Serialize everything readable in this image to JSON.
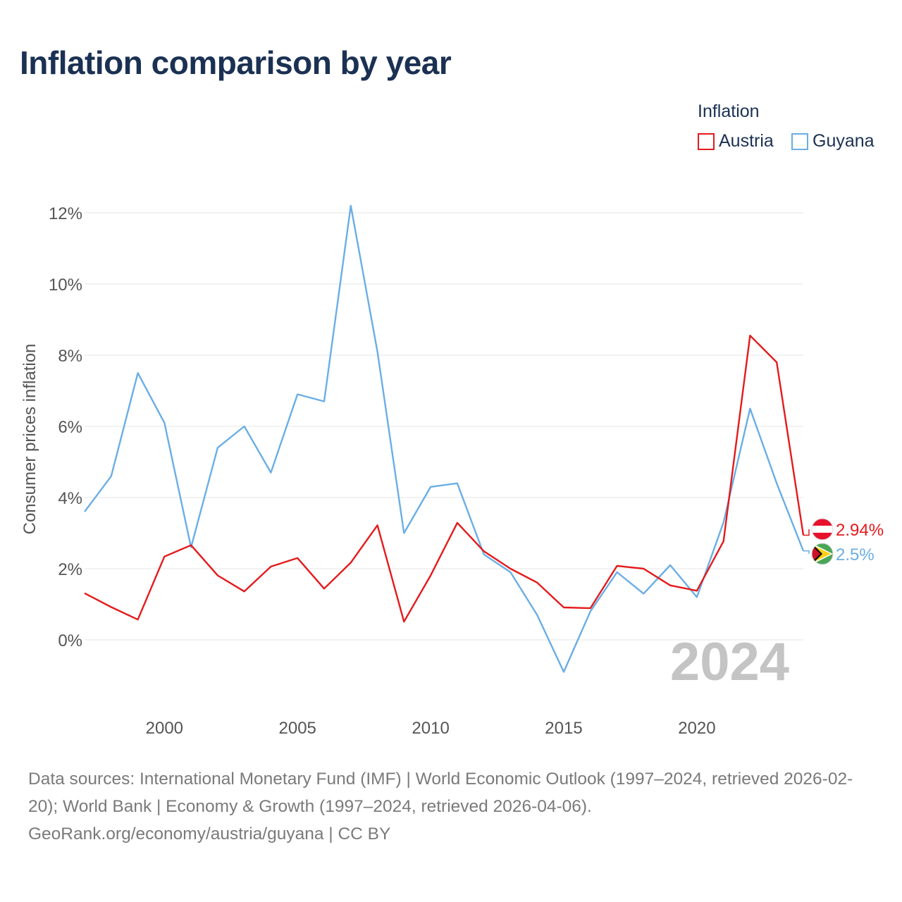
{
  "title": "Inflation comparison by year",
  "legend": {
    "title": "Inflation",
    "items": [
      {
        "label": "Austria",
        "color": "#e41a1c"
      },
      {
        "label": "Guyana",
        "color": "#6aaee6"
      }
    ]
  },
  "source": {
    "line1": "Data sources: International Monetary Fund (IMF) | World Economic Outlook (1997–2024, retrieved 2026-02-20); World Bank | Economy & Growth (1997–2024, retrieved 2026-04-06).",
    "line2": "GeoRank.org/economy/austria/guyana | CC BY"
  },
  "chart_data": {
    "type": "line",
    "title": "Inflation comparison by year",
    "xlabel": "",
    "ylabel": "Consumer prices inflation",
    "xlim": [
      1997,
      2024
    ],
    "ylim": [
      -2,
      12.5
    ],
    "x_ticks": [
      2000,
      2005,
      2010,
      2015,
      2020
    ],
    "y_ticks": [
      0,
      2,
      4,
      6,
      8,
      10,
      12
    ],
    "y_tick_labels": [
      "0%",
      "2%",
      "4%",
      "6%",
      "8%",
      "10%",
      "12%"
    ],
    "grid": true,
    "year_watermark": "2024",
    "x": [
      1997,
      1998,
      1999,
      2000,
      2001,
      2002,
      2003,
      2004,
      2005,
      2006,
      2007,
      2008,
      2009,
      2010,
      2011,
      2012,
      2013,
      2014,
      2015,
      2016,
      2017,
      2018,
      2019,
      2020,
      2021,
      2022,
      2023,
      2024
    ],
    "series": [
      {
        "name": "Austria",
        "color": "#e41a1c",
        "end_label": "2.94%",
        "values": [
          1.31,
          0.92,
          0.57,
          2.34,
          2.66,
          1.81,
          1.36,
          2.06,
          2.3,
          1.44,
          2.17,
          3.22,
          0.51,
          1.81,
          3.29,
          2.49,
          2.0,
          1.61,
          0.91,
          0.89,
          2.08,
          2.0,
          1.53,
          1.38,
          2.77,
          8.55,
          7.8,
          2.94
        ]
      },
      {
        "name": "Guyana",
        "color": "#6aaee6",
        "end_label": "2.5%",
        "values": [
          3.6,
          4.6,
          7.5,
          6.1,
          2.6,
          5.4,
          6.0,
          4.7,
          6.9,
          6.7,
          12.2,
          8.1,
          3.0,
          4.3,
          4.4,
          2.4,
          1.9,
          0.7,
          -0.9,
          0.8,
          1.9,
          1.3,
          2.1,
          1.2,
          3.3,
          6.5,
          4.4,
          2.5
        ]
      }
    ]
  }
}
